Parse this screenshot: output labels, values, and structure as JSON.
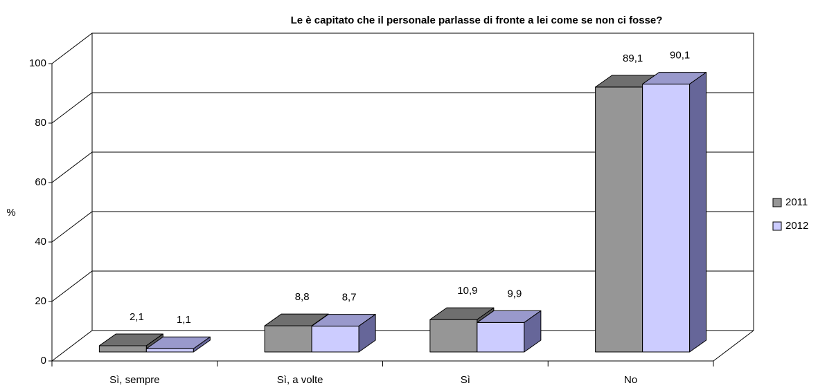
{
  "chart_data": {
    "type": "bar3d",
    "title": "Le è capitato che il personale parlasse di fronte a lei come se non ci fosse?",
    "ylabel": "%",
    "categories": [
      "Sì, sempre",
      "Sì, a volte",
      "Sì",
      "No"
    ],
    "series": [
      {
        "name": "2011",
        "color": "#969696",
        "values": [
          2.1,
          8.8,
          10.9,
          89.1
        ],
        "value_labels": [
          "2,1",
          "8,8",
          "10,9",
          "89,1"
        ]
      },
      {
        "name": "2012",
        "color": "#ccccff",
        "values": [
          1.1,
          8.7,
          9.9,
          90.1
        ],
        "value_labels": [
          "1,1",
          "8,7",
          "9,9",
          "90,1"
        ]
      }
    ],
    "ylim": [
      0,
      100
    ],
    "yticks": [
      0,
      20,
      40,
      60,
      80,
      100
    ],
    "grid": true,
    "legend": "right"
  }
}
